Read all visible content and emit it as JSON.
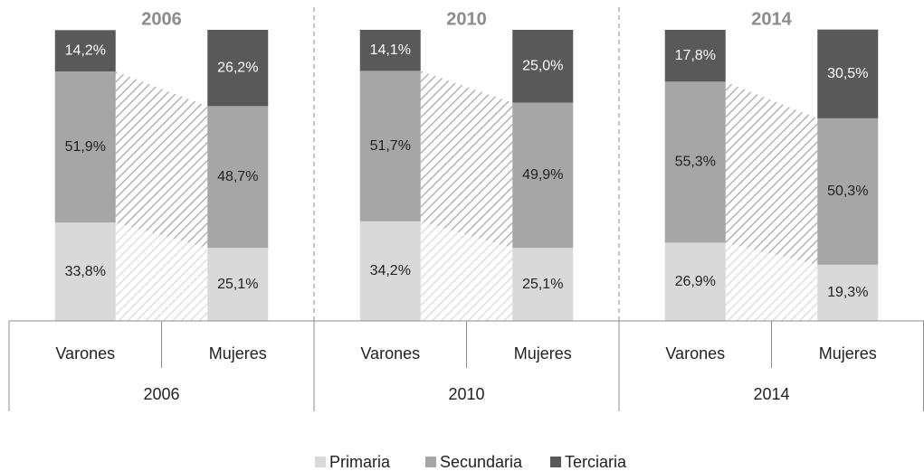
{
  "chart_data": {
    "type": "bar",
    "stacked": true,
    "groups": [
      "2006",
      "2010",
      "2014"
    ],
    "categories": [
      "Varones",
      "Mujeres",
      "Varones",
      "Mujeres",
      "Varones",
      "Mujeres"
    ],
    "series": [
      {
        "name": "Primaria",
        "color": "#d9d9d9",
        "values": [
          33.8,
          25.1,
          34.2,
          25.1,
          26.9,
          19.3
        ],
        "value_labels": [
          "33,8%",
          "25,1%",
          "34,2%",
          "25,1%",
          "26,9%",
          "19,3%"
        ]
      },
      {
        "name": "Secundaria",
        "color": "#a6a6a6",
        "values": [
          51.9,
          48.7,
          51.7,
          49.9,
          55.3,
          50.3
        ],
        "value_labels": [
          "51,9%",
          "48,7%",
          "51,7%",
          "49,9%",
          "55,3%",
          "50,3%"
        ]
      },
      {
        "name": "Terciaria",
        "color": "#595959",
        "values": [
          14.2,
          26.2,
          14.1,
          25.0,
          17.8,
          30.5
        ],
        "value_labels": [
          "14,2%",
          "26,2%",
          "14,1%",
          "25,0%",
          "17,8%",
          "30,5%"
        ]
      }
    ],
    "ylim": [
      0,
      100
    ]
  }
}
